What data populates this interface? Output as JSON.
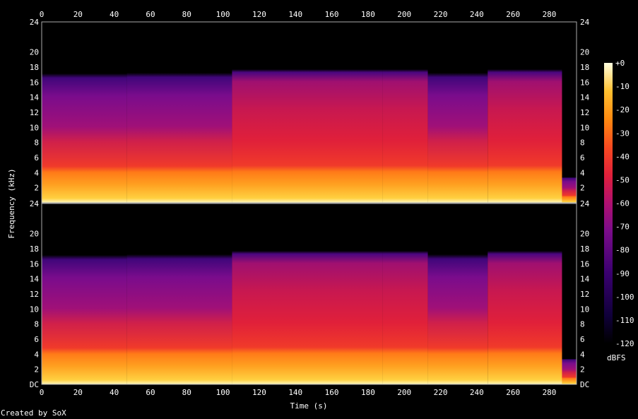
{
  "credit": "Created by SoX",
  "chart_data": {
    "type": "heatmap",
    "title": "",
    "xlabel": "Time (s)",
    "ylabel": "Frequency (kHz)",
    "colorbar_label": "dBFS",
    "xlim": [
      0,
      295
    ],
    "x_ticks": [
      0,
      20,
      40,
      60,
      80,
      100,
      120,
      140,
      160,
      180,
      200,
      220,
      240,
      260,
      280
    ],
    "y_ticks_top": [
      "2",
      "4",
      "6",
      "8",
      "10",
      "12",
      "14",
      "16",
      "18",
      "20",
      "24"
    ],
    "y_ticks_bottom": [
      "DC",
      "2",
      "4",
      "6",
      "8",
      "10",
      "12",
      "14",
      "16",
      "18",
      "20",
      "24"
    ],
    "ylim_khz": [
      0,
      24
    ],
    "channels": 2,
    "colorbar_ticks": [
      "+0",
      "-10",
      "-20",
      "-30",
      "-40",
      "-50",
      "-60",
      "-70",
      "-80",
      "-90",
      "-100",
      "-110",
      "-120"
    ],
    "colorbar_range_db": [
      -120,
      0
    ],
    "colorscale": [
      "#000000",
      "#1a0040",
      "#3a0070",
      "#6a0a8a",
      "#a0107a",
      "#d0204a",
      "#f03a2a",
      "#ff6a10",
      "#ffa010",
      "#ffd040",
      "#ffffc8"
    ],
    "segments": [
      {
        "start": 0,
        "end": 47,
        "loud": false,
        "cutoff_khz": 20.2
      },
      {
        "start": 47,
        "end": 105,
        "loud": false,
        "cutoff_khz": 20.3
      },
      {
        "start": 105,
        "end": 188,
        "loud": true,
        "cutoff_khz": 20.6
      },
      {
        "start": 188,
        "end": 213,
        "loud": true,
        "cutoff_khz": 20.6
      },
      {
        "start": 213,
        "end": 246,
        "loud": false,
        "cutoff_khz": 20.3
      },
      {
        "start": 246,
        "end": 287,
        "loud": true,
        "cutoff_khz": 20.6
      },
      {
        "start": 287,
        "end": 295,
        "loud": false,
        "cutoff_khz": 4
      }
    ]
  }
}
